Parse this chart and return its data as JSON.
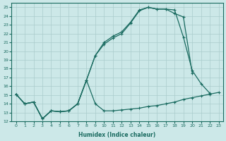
{
  "xlabel": "Humidex (Indice chaleur)",
  "bg_color": "#cce8e8",
  "grid_color": "#aacccc",
  "line_color": "#1a6b60",
  "xlim": [
    -0.5,
    23.5
  ],
  "ylim": [
    12,
    25.5
  ],
  "yticks": [
    12,
    13,
    14,
    15,
    16,
    17,
    18,
    19,
    20,
    21,
    22,
    23,
    24,
    25
  ],
  "xticks": [
    0,
    1,
    2,
    3,
    4,
    5,
    6,
    7,
    8,
    9,
    10,
    11,
    12,
    13,
    14,
    15,
    16,
    17,
    18,
    19,
    20,
    21,
    22,
    23
  ],
  "line_top_x": [
    0,
    1,
    2,
    3,
    4,
    5,
    6,
    7,
    8,
    9,
    10,
    11,
    12,
    13,
    14,
    15,
    16,
    17,
    18,
    19,
    20,
    21,
    22,
    23
  ],
  "line_top_y": [
    15.1,
    14.0,
    14.2,
    12.3,
    13.2,
    13.1,
    13.2,
    14.0,
    16.7,
    19.5,
    21.0,
    21.7,
    22.2,
    23.3,
    24.7,
    25.0,
    24.8,
    24.8,
    24.3,
    23.9,
    17.5,
    null,
    null,
    null
  ],
  "line_mid_x": [
    0,
    1,
    2,
    3,
    4,
    5,
    6,
    7,
    8,
    9,
    10,
    11,
    12,
    13,
    14,
    15,
    16,
    17,
    18,
    19,
    20,
    21,
    22,
    23
  ],
  "line_mid_y": [
    15.1,
    14.0,
    14.2,
    12.3,
    13.2,
    13.1,
    13.2,
    14.0,
    16.7,
    19.5,
    20.8,
    21.5,
    22.0,
    23.2,
    24.6,
    25.0,
    24.8,
    24.8,
    24.7,
    21.6,
    17.8,
    16.3,
    15.2,
    null
  ],
  "line_bot_x": [
    0,
    1,
    2,
    3,
    4,
    5,
    6,
    7,
    8,
    9,
    10,
    11,
    12,
    13,
    14,
    15,
    16,
    17,
    18,
    19,
    20,
    21,
    22,
    23
  ],
  "line_bot_y": [
    15.1,
    14.0,
    14.2,
    12.3,
    13.2,
    13.1,
    13.2,
    14.0,
    16.7,
    14.0,
    13.2,
    13.2,
    13.3,
    13.4,
    13.5,
    13.7,
    13.8,
    14.0,
    14.2,
    14.5,
    14.7,
    14.9,
    15.1,
    15.3
  ]
}
